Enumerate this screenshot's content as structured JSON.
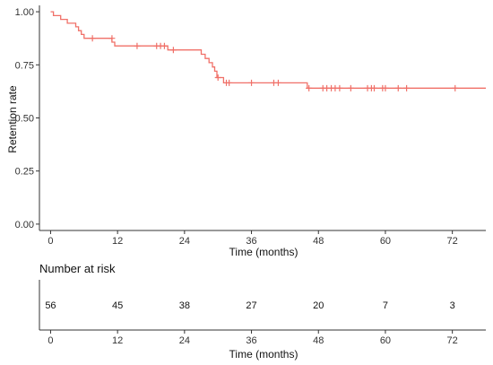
{
  "chart_data": [
    {
      "type": "line",
      "title": "",
      "xlabel": "Time (months)",
      "ylabel": "Retention rate",
      "xlim": [
        -2,
        78
      ],
      "ylim": [
        -0.03,
        1.03
      ],
      "x_ticks": [
        0,
        12,
        24,
        36,
        48,
        60,
        72
      ],
      "y_ticks": [
        0.0,
        0.25,
        0.5,
        0.75,
        1.0
      ],
      "y_tick_labels": [
        "0.00",
        "0.25",
        "0.50",
        "0.75",
        "1.00"
      ],
      "line_color": "#F07068",
      "step": [
        [
          0,
          1.0
        ],
        [
          0.5,
          1.0
        ],
        [
          0.5,
          0.982
        ],
        [
          1.8,
          0.982
        ],
        [
          1.8,
          0.964
        ],
        [
          3.0,
          0.964
        ],
        [
          3.0,
          0.946
        ],
        [
          4.5,
          0.946
        ],
        [
          4.5,
          0.929
        ],
        [
          5.0,
          0.929
        ],
        [
          5.0,
          0.911
        ],
        [
          5.5,
          0.911
        ],
        [
          5.5,
          0.893
        ],
        [
          6.0,
          0.893
        ],
        [
          6.0,
          0.875
        ],
        [
          11.0,
          0.875
        ],
        [
          11.0,
          0.857
        ],
        [
          11.5,
          0.857
        ],
        [
          11.5,
          0.839
        ],
        [
          21.0,
          0.839
        ],
        [
          21.0,
          0.82
        ],
        [
          27.0,
          0.82
        ],
        [
          27.0,
          0.8
        ],
        [
          27.7,
          0.8
        ],
        [
          27.7,
          0.78
        ],
        [
          28.4,
          0.78
        ],
        [
          28.4,
          0.76
        ],
        [
          29.0,
          0.76
        ],
        [
          29.0,
          0.74
        ],
        [
          29.4,
          0.74
        ],
        [
          29.4,
          0.72
        ],
        [
          29.8,
          0.72
        ],
        [
          29.8,
          0.69
        ],
        [
          31.0,
          0.69
        ],
        [
          31.0,
          0.665
        ],
        [
          46.0,
          0.665
        ],
        [
          46.0,
          0.64
        ],
        [
          78,
          0.64
        ]
      ],
      "censored": [
        [
          7.5,
          0.875
        ],
        [
          11.0,
          0.875
        ],
        [
          15.5,
          0.839
        ],
        [
          19.0,
          0.839
        ],
        [
          19.7,
          0.839
        ],
        [
          20.4,
          0.839
        ],
        [
          22.0,
          0.82
        ],
        [
          30.0,
          0.69
        ],
        [
          31.5,
          0.665
        ],
        [
          32.0,
          0.665
        ],
        [
          36.0,
          0.665
        ],
        [
          40.0,
          0.665
        ],
        [
          40.8,
          0.665
        ],
        [
          46.3,
          0.64
        ],
        [
          48.8,
          0.64
        ],
        [
          49.5,
          0.64
        ],
        [
          50.3,
          0.64
        ],
        [
          51.0,
          0.64
        ],
        [
          51.8,
          0.64
        ],
        [
          53.8,
          0.64
        ],
        [
          56.8,
          0.64
        ],
        [
          57.5,
          0.64
        ],
        [
          58.0,
          0.64
        ],
        [
          59.5,
          0.64
        ],
        [
          60.0,
          0.64
        ],
        [
          62.3,
          0.64
        ],
        [
          63.8,
          0.64
        ],
        [
          72.5,
          0.64
        ]
      ]
    },
    {
      "type": "table",
      "title": "Number at risk",
      "xlabel": "Time (months)",
      "xlim": [
        -2,
        78
      ],
      "x_ticks": [
        0,
        12,
        24,
        36,
        48,
        60,
        72
      ],
      "values": [
        "56",
        "45",
        "38",
        "27",
        "20",
        "7",
        "3"
      ]
    }
  ]
}
